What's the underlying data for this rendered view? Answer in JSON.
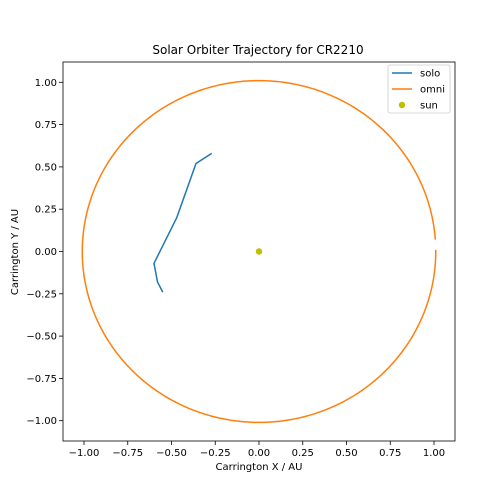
{
  "chart_data": {
    "type": "line",
    "title": "Solar Orbiter Trajectory for CR2210",
    "xlabel": "Carrington X / AU",
    "ylabel": "Carrington Y / AU",
    "xlim": [
      -1.12,
      1.12
    ],
    "ylim": [
      -1.12,
      1.12
    ],
    "xticks": [
      -1.0,
      -0.75,
      -0.5,
      -0.25,
      0.0,
      0.25,
      0.5,
      0.75,
      1.0
    ],
    "yticks": [
      -1.0,
      -0.75,
      -0.5,
      -0.25,
      0.0,
      0.25,
      0.5,
      0.75,
      1.0
    ],
    "xtick_labels": [
      "−1.00",
      "−0.75",
      "−0.50",
      "−0.25",
      "0.00",
      "0.25",
      "0.50",
      "0.75",
      "1.00"
    ],
    "ytick_labels": [
      "−1.00",
      "−0.75",
      "−0.50",
      "−0.25",
      "0.00",
      "0.25",
      "0.50",
      "0.75",
      "1.00"
    ],
    "grid": false,
    "legend_position": "top-right",
    "series": [
      {
        "name": "solo",
        "kind": "line",
        "color": "#1f77b4",
        "x": [
          -0.27,
          -0.36,
          -0.47,
          -0.6,
          -0.58,
          -0.55
        ],
        "y": [
          0.58,
          0.52,
          0.2,
          -0.07,
          -0.18,
          -0.24
        ]
      },
      {
        "name": "omni",
        "kind": "circle",
        "color": "#ff7f0e",
        "radius": 1.01,
        "gap_at_y": [
          0.01,
          0.07
        ]
      },
      {
        "name": "sun",
        "kind": "scatter",
        "color": "#bfbf00",
        "x": [
          0.0
        ],
        "y": [
          0.0
        ]
      }
    ]
  }
}
